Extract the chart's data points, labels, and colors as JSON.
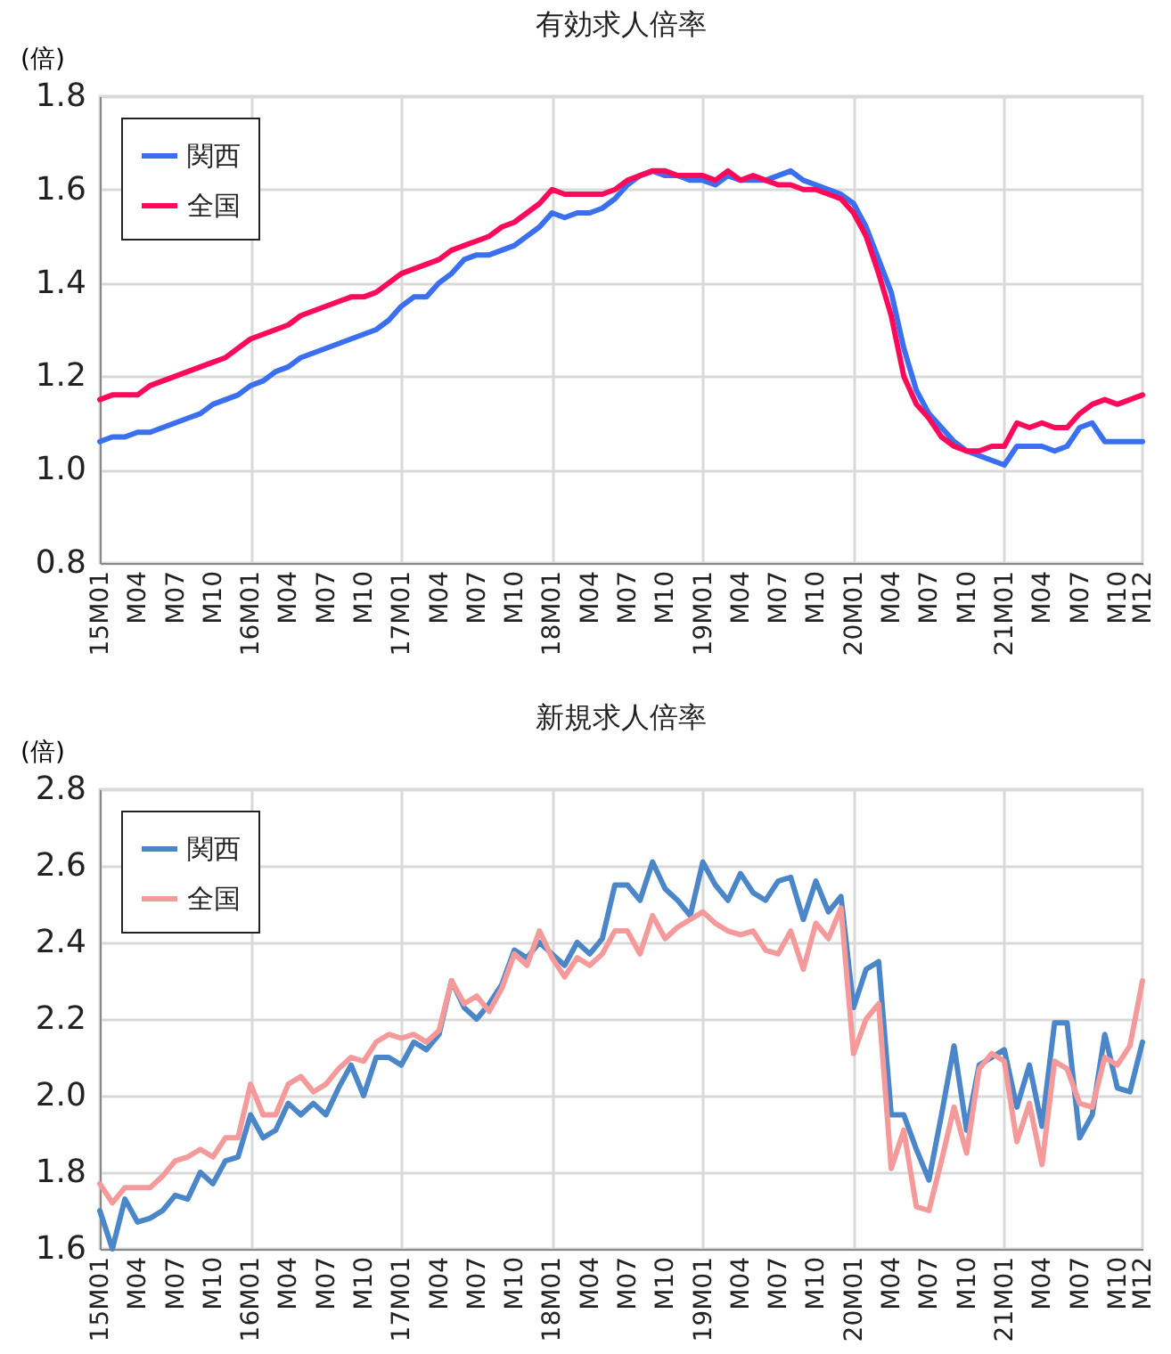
{
  "chart_data": [
    {
      "type": "line",
      "title": "有効求人倍率",
      "ylabel": "(倍)",
      "categories": [
        "15M01",
        null,
        null,
        "M04",
        null,
        null,
        "M07",
        null,
        null,
        "M10",
        null,
        null,
        "16M01",
        null,
        null,
        "M04",
        null,
        null,
        "M07",
        null,
        null,
        "M10",
        null,
        null,
        "17M01",
        null,
        null,
        "M04",
        null,
        null,
        "M07",
        null,
        null,
        "M10",
        null,
        null,
        "18M01",
        null,
        null,
        "M04",
        null,
        null,
        "M07",
        null,
        null,
        "M10",
        null,
        null,
        "19M01",
        null,
        null,
        "M04",
        null,
        null,
        "M07",
        null,
        null,
        "M10",
        null,
        null,
        "20M01",
        null,
        null,
        "M04",
        null,
        null,
        "M07",
        null,
        null,
        "M10",
        null,
        null,
        "21M01",
        null,
        null,
        "M04",
        null,
        null,
        "M07",
        null,
        null,
        "M10",
        null,
        "M12"
      ],
      "series": [
        {
          "name": "関西",
          "color": "#3a6ff0",
          "values": [
            1.06,
            1.07,
            1.07,
            1.08,
            1.08,
            1.09,
            1.1,
            1.11,
            1.12,
            1.14,
            1.15,
            1.16,
            1.18,
            1.19,
            1.21,
            1.22,
            1.24,
            1.25,
            1.26,
            1.27,
            1.28,
            1.29,
            1.3,
            1.32,
            1.35,
            1.37,
            1.37,
            1.4,
            1.42,
            1.45,
            1.46,
            1.46,
            1.47,
            1.48,
            1.5,
            1.52,
            1.55,
            1.54,
            1.55,
            1.55,
            1.56,
            1.58,
            1.61,
            1.63,
            1.64,
            1.63,
            1.63,
            1.62,
            1.62,
            1.61,
            1.63,
            1.62,
            1.62,
            1.62,
            1.63,
            1.64,
            1.62,
            1.61,
            1.6,
            1.59,
            1.57,
            1.52,
            1.45,
            1.38,
            1.26,
            1.17,
            1.12,
            1.09,
            1.06,
            1.04,
            1.03,
            1.02,
            1.01,
            1.05,
            1.05,
            1.05,
            1.04,
            1.05,
            1.09,
            1.1,
            1.06,
            1.06,
            1.06,
            1.06
          ]
        },
        {
          "name": "全国",
          "color": "#ff0a5a",
          "values": [
            1.15,
            1.16,
            1.16,
            1.16,
            1.18,
            1.19,
            1.2,
            1.21,
            1.22,
            1.23,
            1.24,
            1.26,
            1.28,
            1.29,
            1.3,
            1.31,
            1.33,
            1.34,
            1.35,
            1.36,
            1.37,
            1.37,
            1.38,
            1.4,
            1.42,
            1.43,
            1.44,
            1.45,
            1.47,
            1.48,
            1.49,
            1.5,
            1.52,
            1.53,
            1.55,
            1.57,
            1.6,
            1.59,
            1.59,
            1.59,
            1.59,
            1.6,
            1.62,
            1.63,
            1.64,
            1.64,
            1.63,
            1.63,
            1.63,
            1.62,
            1.64,
            1.62,
            1.63,
            1.62,
            1.61,
            1.61,
            1.6,
            1.6,
            1.59,
            1.58,
            1.55,
            1.5,
            1.42,
            1.33,
            1.2,
            1.14,
            1.11,
            1.07,
            1.05,
            1.04,
            1.04,
            1.05,
            1.05,
            1.1,
            1.09,
            1.1,
            1.09,
            1.09,
            1.12,
            1.14,
            1.15,
            1.14,
            1.15,
            1.16
          ]
        }
      ],
      "ylim": [
        0.8,
        1.8
      ],
      "yticks": [
        0.8,
        {
          "value": 1,
          "label": "1.0"
        },
        1.2,
        1.4,
        1.6,
        1.8
      ],
      "grid": true,
      "legend": "top left"
    },
    {
      "type": "line",
      "title": "新規求人倍率",
      "ylabel": "(倍)",
      "categories": [
        "15M01",
        null,
        null,
        "M04",
        null,
        null,
        "M07",
        null,
        null,
        "M10",
        null,
        null,
        "16M01",
        null,
        null,
        "M04",
        null,
        null,
        "M07",
        null,
        null,
        "M10",
        null,
        null,
        "17M01",
        null,
        null,
        "M04",
        null,
        null,
        "M07",
        null,
        null,
        "M10",
        null,
        null,
        "18M01",
        null,
        null,
        "M04",
        null,
        null,
        "M07",
        null,
        null,
        "M10",
        null,
        null,
        "19M01",
        null,
        null,
        "M04",
        null,
        null,
        "M07",
        null,
        null,
        "M10",
        null,
        null,
        "20M01",
        null,
        null,
        "M04",
        null,
        null,
        "M07",
        null,
        null,
        "M10",
        null,
        null,
        "21M01",
        null,
        null,
        "M04",
        null,
        null,
        "M07",
        null,
        null,
        "M10",
        null,
        "M12"
      ],
      "series": [
        {
          "name": "関西",
          "color": "#4a86c8",
          "values": [
            1.7,
            1.6,
            1.73,
            1.67,
            1.68,
            1.7,
            1.74,
            1.73,
            1.8,
            1.77,
            1.83,
            1.84,
            1.95,
            1.89,
            1.91,
            1.98,
            1.95,
            1.98,
            1.95,
            2.02,
            2.08,
            2.0,
            2.1,
            2.1,
            2.08,
            2.14,
            2.12,
            2.16,
            2.3,
            2.23,
            2.2,
            2.24,
            2.29,
            2.38,
            2.36,
            2.4,
            2.37,
            2.34,
            2.4,
            2.37,
            2.41,
            2.55,
            2.55,
            2.51,
            2.61,
            2.54,
            2.51,
            2.47,
            2.61,
            2.55,
            2.51,
            2.58,
            2.53,
            2.51,
            2.56,
            2.57,
            2.46,
            2.56,
            2.48,
            2.52,
            2.23,
            2.33,
            2.35,
            1.95,
            1.95,
            1.86,
            1.78,
            1.95,
            2.13,
            1.91,
            2.08,
            2.1,
            2.12,
            1.97,
            2.08,
            1.92,
            2.19,
            2.19,
            1.89,
            1.95,
            2.16,
            2.02,
            2.01,
            2.14
          ]
        },
        {
          "name": "全国",
          "color": "#f49a9a",
          "values": [
            1.77,
            1.72,
            1.76,
            1.76,
            1.76,
            1.79,
            1.83,
            1.84,
            1.86,
            1.84,
            1.89,
            1.89,
            2.03,
            1.95,
            1.95,
            2.03,
            2.05,
            2.01,
            2.03,
            2.07,
            2.1,
            2.09,
            2.14,
            2.16,
            2.15,
            2.16,
            2.14,
            2.17,
            2.3,
            2.24,
            2.26,
            2.22,
            2.28,
            2.37,
            2.34,
            2.43,
            2.36,
            2.31,
            2.36,
            2.34,
            2.37,
            2.43,
            2.43,
            2.37,
            2.47,
            2.41,
            2.44,
            2.46,
            2.48,
            2.45,
            2.43,
            2.42,
            2.43,
            2.38,
            2.37,
            2.43,
            2.33,
            2.45,
            2.41,
            2.49,
            2.11,
            2.2,
            2.24,
            1.81,
            1.91,
            1.71,
            1.7,
            1.83,
            1.97,
            1.85,
            2.07,
            2.11,
            2.09,
            1.88,
            1.98,
            1.82,
            2.09,
            2.07,
            1.98,
            1.97,
            2.1,
            2.08,
            2.13,
            2.3
          ]
        }
      ],
      "ylim": [
        1.6,
        2.8
      ],
      "yticks": [
        1.6,
        1.8,
        {
          "value": 2,
          "label": "2.0"
        },
        2.2,
        2.4,
        2.6,
        2.8
      ],
      "grid": true,
      "legend": "top left"
    }
  ]
}
